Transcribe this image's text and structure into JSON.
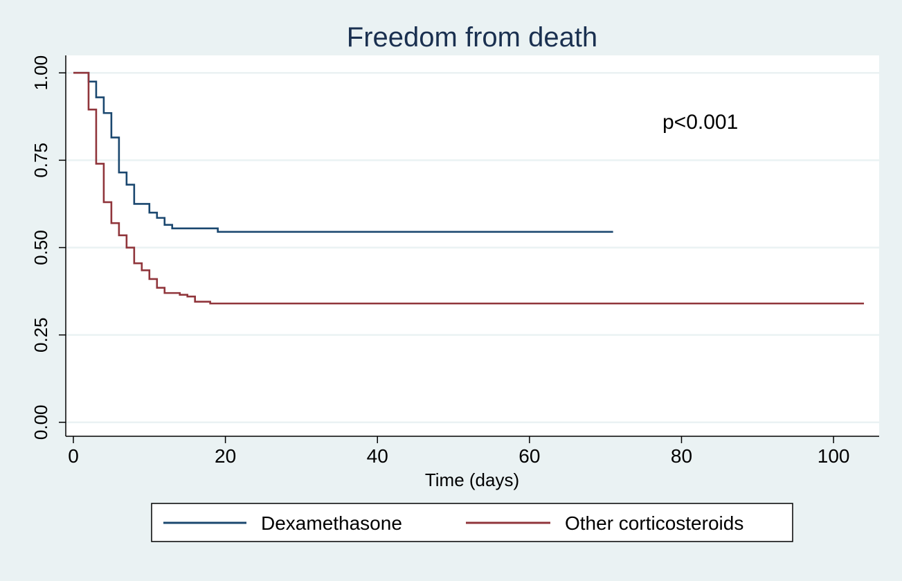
{
  "chart_data": {
    "type": "line",
    "title": "Freedom from death",
    "xlabel": "Time (days)",
    "ylabel": "",
    "xlim": [
      -1,
      106
    ],
    "ylim": [
      -0.04,
      1.05
    ],
    "x_ticks": [
      0,
      20,
      40,
      60,
      80,
      100
    ],
    "x_tick_labels": [
      "0",
      "20",
      "40",
      "60",
      "80",
      "100"
    ],
    "y_ticks": [
      0,
      0.25,
      0.5,
      0.75,
      1.0
    ],
    "y_tick_labels": [
      "0.00",
      "0.25",
      "0.50",
      "0.75",
      "1.00"
    ],
    "grid": true,
    "legend_position": "bottom",
    "annotation": "p<0.001",
    "series": [
      {
        "name": "Dexamethasone",
        "color": "#1a476f",
        "step": true,
        "points": [
          [
            0,
            1.0
          ],
          [
            1,
            1.0
          ],
          [
            2,
            0.975
          ],
          [
            3,
            0.93
          ],
          [
            4,
            0.885
          ],
          [
            5,
            0.815
          ],
          [
            6,
            0.715
          ],
          [
            7,
            0.68
          ],
          [
            8,
            0.625
          ],
          [
            10,
            0.6
          ],
          [
            11,
            0.585
          ],
          [
            12,
            0.565
          ],
          [
            13,
            0.555
          ],
          [
            19,
            0.545
          ],
          [
            71,
            0.545
          ]
        ]
      },
      {
        "name": "Other corticosteroids",
        "color": "#90353b",
        "step": true,
        "points": [
          [
            0,
            1.0
          ],
          [
            1,
            1.0
          ],
          [
            2,
            0.895
          ],
          [
            3,
            0.74
          ],
          [
            4,
            0.63
          ],
          [
            5,
            0.57
          ],
          [
            6,
            0.535
          ],
          [
            7,
            0.5
          ],
          [
            8,
            0.455
          ],
          [
            9,
            0.435
          ],
          [
            10,
            0.41
          ],
          [
            11,
            0.385
          ],
          [
            12,
            0.37
          ],
          [
            14,
            0.365
          ],
          [
            15,
            0.36
          ],
          [
            16,
            0.345
          ],
          [
            18,
            0.34
          ],
          [
            104,
            0.34
          ]
        ]
      }
    ]
  }
}
